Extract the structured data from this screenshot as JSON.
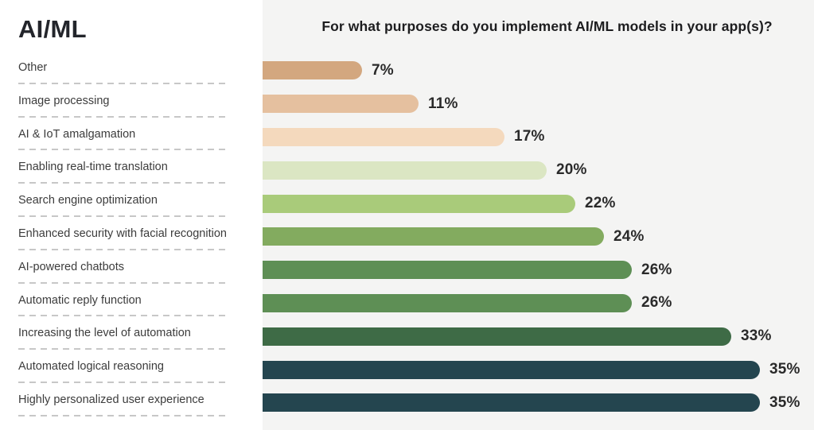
{
  "sidebar": {
    "title": "AI/ML"
  },
  "chart": {
    "title": "For what purposes do you implement AI/ML models in your app(s)?"
  },
  "chart_data": {
    "type": "bar",
    "orientation": "horizontal",
    "title": "For what purposes do you implement AI/ML models in your app(s)?",
    "categories": [
      "Other",
      "Image processing",
      "AI & IoT amalgamation",
      "Enabling real-time translation",
      "Search engine optimization",
      "Enhanced security with facial recognition",
      "AI-powered chatbots",
      "Automatic reply function",
      "Increasing the level of automation",
      "Automated logical reasoning",
      "Highly personalized user experience"
    ],
    "values": [
      7,
      11,
      17,
      20,
      22,
      24,
      26,
      26,
      33,
      35,
      35
    ],
    "value_suffix": "%",
    "data_labels": true,
    "grid": false,
    "legend": false,
    "xlim": [
      0,
      38
    ],
    "bar_colors": [
      "#d3a77f",
      "#e5c09f",
      "#f4d9bd",
      "#dbe6c3",
      "#a9cb7a",
      "#83ab5f",
      "#5e8f55",
      "#5e8f55",
      "#3e6b46",
      "#24454f",
      "#24454f"
    ],
    "panel_background": "#f4f4f3",
    "sidebar_background": "#ffffff",
    "divider_color": "#c7c7c7",
    "label_text_color": "#3c3c3c",
    "value_text_color": "#2a2a2a",
    "title_text_color": "#1d1d1f"
  }
}
